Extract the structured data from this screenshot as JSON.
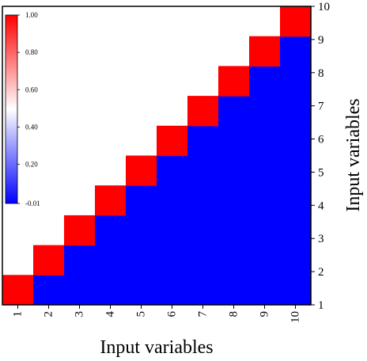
{
  "chart_data": {
    "type": "heatmap",
    "xlabel": "Input variables",
    "ylabel": "Input variables",
    "x_ticks": [
      "1",
      "2",
      "3",
      "4",
      "5",
      "6",
      "7",
      "8",
      "9",
      "10"
    ],
    "y_ticks": [
      "1",
      "2",
      "3",
      "4",
      "5",
      "6",
      "7",
      "8",
      "9",
      "10"
    ],
    "colorbar": {
      "min": -0.01,
      "max": 1.0,
      "tick_labels": [
        "1.00",
        "0.80",
        "0.60",
        "0.40",
        "0.20",
        "-0.01"
      ],
      "tick_values": [
        1.0,
        0.8,
        0.6,
        0.4,
        0.2,
        -0.01
      ],
      "colors": {
        "low": "#0000ff",
        "mid": "#ffffff",
        "high": "#ff0000"
      },
      "position": "top-left"
    },
    "cells": {
      "description_rule": "diagonal cells (x == y) have value 1.00; cells below the diagonal (x > y) have value -0.01; cells above the diagonal are blank",
      "diagonal_value": 1.0,
      "lower_value": -0.01,
      "upper_blank": true
    },
    "values": [
      [
        1.0,
        null,
        null,
        null,
        null,
        null,
        null,
        null,
        null,
        null
      ],
      [
        -0.01,
        1.0,
        null,
        null,
        null,
        null,
        null,
        null,
        null,
        null
      ],
      [
        -0.01,
        -0.01,
        1.0,
        null,
        null,
        null,
        null,
        null,
        null,
        null
      ],
      [
        -0.01,
        -0.01,
        -0.01,
        1.0,
        null,
        null,
        null,
        null,
        null,
        null
      ],
      [
        -0.01,
        -0.01,
        -0.01,
        -0.01,
        1.0,
        null,
        null,
        null,
        null,
        null
      ],
      [
        -0.01,
        -0.01,
        -0.01,
        -0.01,
        -0.01,
        1.0,
        null,
        null,
        null,
        null
      ],
      [
        -0.01,
        -0.01,
        -0.01,
        -0.01,
        -0.01,
        -0.01,
        1.0,
        null,
        null,
        null
      ],
      [
        -0.01,
        -0.01,
        -0.01,
        -0.01,
        -0.01,
        -0.01,
        -0.01,
        1.0,
        null,
        null
      ],
      [
        -0.01,
        -0.01,
        -0.01,
        -0.01,
        -0.01,
        -0.01,
        -0.01,
        -0.01,
        1.0,
        null
      ],
      [
        -0.01,
        -0.01,
        -0.01,
        -0.01,
        -0.01,
        -0.01,
        -0.01,
        -0.01,
        -0.01,
        1.0
      ]
    ],
    "values_layout": "values[i][j] where i = x index (0 = x '1'), j = y index (0 = y '1')"
  }
}
